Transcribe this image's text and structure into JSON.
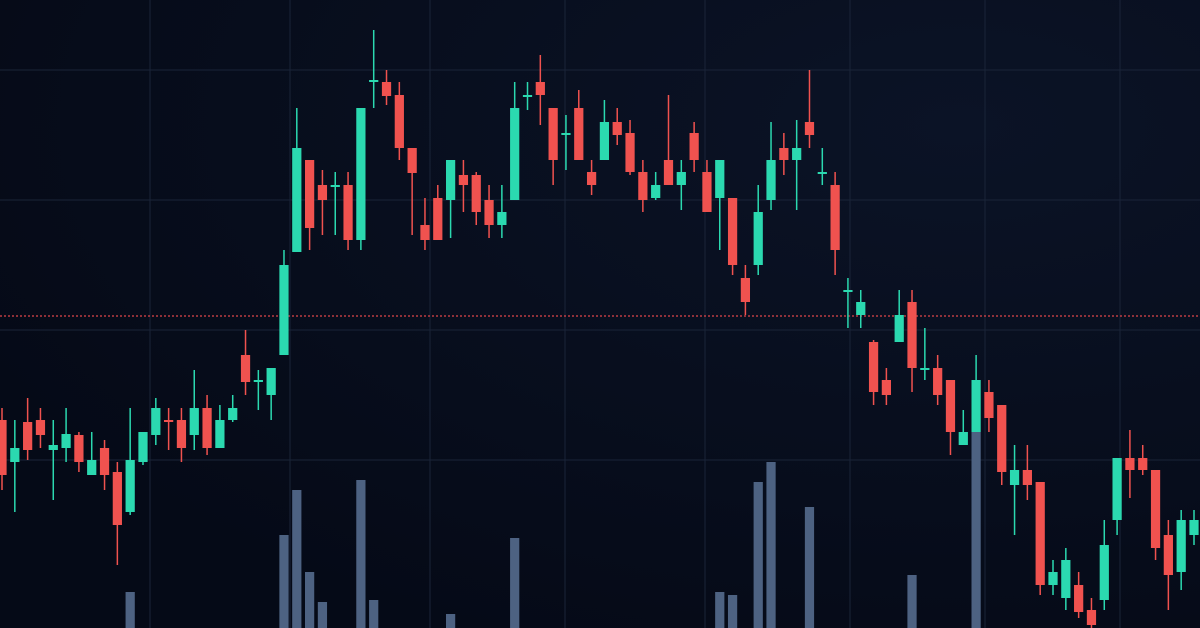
{
  "chart_data": {
    "type": "candlestick",
    "ylim": [
      0,
      628
    ],
    "up_color": "#2bd9b0",
    "down_color": "#f0524f",
    "volume_color": "#4d6282",
    "price_line_color": "#e0454a",
    "price_line": 312,
    "open": [
      208,
      166,
      206,
      208,
      178,
      180,
      193,
      153,
      180,
      156,
      116,
      166,
      193,
      208,
      208,
      193,
      220,
      180,
      208,
      273,
      246,
      233,
      273,
      376,
      468,
      443,
      441,
      443,
      388,
      546,
      546,
      533,
      480,
      403,
      430,
      428,
      453,
      453,
      428,
      403,
      428,
      531,
      546,
      520,
      493,
      520,
      456,
      468,
      506,
      495,
      456,
      430,
      468,
      443,
      495,
      456,
      430,
      430,
      350,
      363,
      428,
      480,
      468,
      506,
      454,
      443,
      336,
      313,
      286,
      248,
      286,
      326,
      258,
      260,
      248,
      183,
      196,
      236,
      223,
      143,
      158,
      146,
      43,
      30,
      43,
      18,
      28,
      108,
      170,
      170,
      158,
      93,
      56,
      93
    ],
    "high": [
      220,
      208,
      230,
      220,
      208,
      220,
      196,
      196,
      188,
      166,
      220,
      196,
      230,
      220,
      220,
      258,
      233,
      223,
      233,
      298,
      258,
      260,
      378,
      520,
      468,
      458,
      456,
      456,
      520,
      598,
      558,
      546,
      480,
      430,
      443,
      468,
      468,
      456,
      443,
      443,
      546,
      546,
      573,
      520,
      513,
      538,
      468,
      528,
      520,
      508,
      468,
      456,
      533,
      468,
      506,
      468,
      468,
      430,
      363,
      443,
      506,
      495,
      508,
      558,
      480,
      456,
      350,
      338,
      288,
      260,
      338,
      338,
      300,
      273,
      248,
      218,
      273,
      248,
      223,
      183,
      183,
      146,
      68,
      80,
      56,
      30,
      108,
      170,
      198,
      183,
      158,
      108,
      118,
      118
    ],
    "low": [
      138,
      116,
      168,
      180,
      128,
      166,
      156,
      153,
      138,
      63,
      113,
      163,
      183,
      178,
      166,
      178,
      173,
      180,
      206,
      233,
      218,
      208,
      273,
      376,
      378,
      393,
      393,
      378,
      378,
      520,
      523,
      468,
      393,
      378,
      388,
      390,
      416,
      403,
      390,
      390,
      428,
      518,
      503,
      443,
      458,
      468,
      433,
      468,
      483,
      453,
      416,
      428,
      443,
      418,
      456,
      416,
      378,
      353,
      313,
      353,
      418,
      453,
      418,
      480,
      443,
      353,
      300,
      300,
      223,
      223,
      286,
      236,
      248,
      223,
      173,
      183,
      196,
      196,
      143,
      93,
      128,
      33,
      33,
      18,
      10,
      0,
      18,
      93,
      130,
      153,
      68,
      18,
      38,
      83
    ],
    "close": [
      153,
      180,
      178,
      193,
      183,
      194,
      166,
      168,
      153,
      103,
      168,
      196,
      220,
      206,
      180,
      220,
      180,
      208,
      220,
      246,
      248,
      260,
      363,
      480,
      400,
      428,
      443,
      388,
      520,
      548,
      532,
      480,
      455,
      388,
      388,
      468,
      443,
      416,
      403,
      416,
      520,
      533,
      533,
      468,
      495,
      468,
      443,
      506,
      493,
      456,
      428,
      443,
      443,
      456,
      468,
      416,
      468,
      363,
      326,
      416,
      468,
      468,
      480,
      493,
      456,
      378,
      338,
      326,
      236,
      233,
      313,
      260,
      260,
      233,
      196,
      196,
      248,
      210,
      156,
      158,
      143,
      43,
      56,
      68,
      16,
      3,
      83,
      170,
      158,
      158,
      80,
      53,
      108,
      108
    ],
    "volume": [
      null,
      null,
      null,
      null,
      null,
      null,
      null,
      null,
      null,
      null,
      36,
      null,
      null,
      null,
      null,
      null,
      null,
      null,
      null,
      null,
      null,
      null,
      93,
      138,
      56,
      26,
      null,
      null,
      148,
      28,
      null,
      null,
      null,
      null,
      null,
      14,
      null,
      null,
      null,
      null,
      90,
      null,
      null,
      null,
      null,
      null,
      null,
      null,
      null,
      null,
      null,
      null,
      null,
      null,
      null,
      null,
      36,
      33,
      null,
      146,
      166,
      null,
      null,
      121,
      null,
      null,
      null,
      null,
      null,
      null,
      null,
      53,
      null,
      null,
      null,
      null,
      196,
      null,
      null,
      null,
      null,
      null,
      null,
      null,
      null,
      null,
      null,
      null,
      null,
      null,
      null,
      null,
      null,
      null
    ]
  }
}
